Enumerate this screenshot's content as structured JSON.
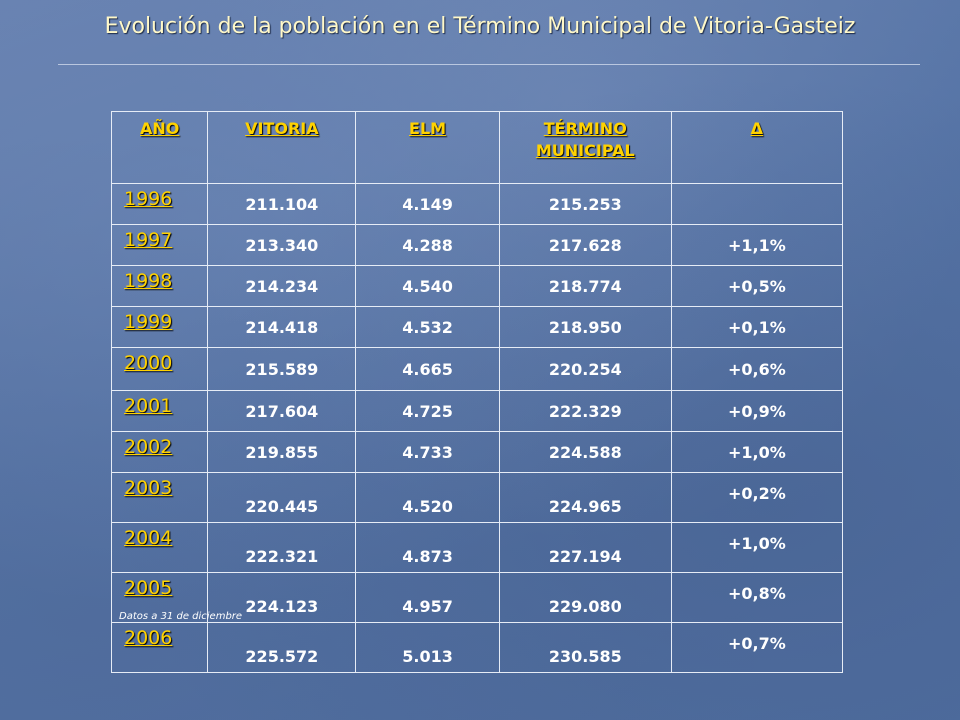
{
  "title": "Evolución de la población en el Término Municipal de Vitoria-Gasteiz",
  "table": {
    "headers": {
      "year": "AÑO",
      "vitoria": "VITORIA",
      "elm": "ELM",
      "termino": "TÉRMINO MUNICIPAL",
      "delta": "Δ"
    },
    "rows": [
      {
        "year": "1996",
        "vitoria": "211.104",
        "elm": "4.149",
        "termino": "215.253",
        "delta": ""
      },
      {
        "year": "1997",
        "vitoria": "213.340",
        "elm": "4.288",
        "termino": "217.628",
        "delta": "+1,1%"
      },
      {
        "year": "1998",
        "vitoria": "214.234",
        "elm": "4.540",
        "termino": "218.774",
        "delta": "+0,5%"
      },
      {
        "year": "1999",
        "vitoria": "214.418",
        "elm": "4.532",
        "termino": "218.950",
        "delta": "+0,1%"
      },
      {
        "year": "2000",
        "vitoria": "215.589",
        "elm": "4.665",
        "termino": "220.254",
        "delta": "+0,6%"
      },
      {
        "year": "2001",
        "vitoria": "217.604",
        "elm": "4.725",
        "termino": "222.329",
        "delta": "+0,9%"
      },
      {
        "year": "2002",
        "vitoria": "219.855",
        "elm": "4.733",
        "termino": "224.588",
        "delta": "+1,0%"
      },
      {
        "year": "2003",
        "vitoria": "220.445",
        "elm": "4.520",
        "termino": "224.965",
        "delta": "+0,2%"
      },
      {
        "year": "2004",
        "vitoria": "222.321",
        "elm": "4.873",
        "termino": "227.194",
        "delta": "+1,0%"
      },
      {
        "year": "2005",
        "vitoria": "224.123",
        "elm": "4.957",
        "termino": "229.080",
        "delta": "+0,8%"
      },
      {
        "year": "2006",
        "vitoria": "225.572",
        "elm": "5.013",
        "termino": "230.585",
        "delta": "+0,7%"
      }
    ]
  },
  "footnote": "Datos a 31 de diciembre",
  "colors": {
    "background": "#5a78a8",
    "title": "#fff8c8",
    "header": "#ffd200",
    "cell_text": "#ffffff",
    "grid": "#e6ecf6"
  }
}
